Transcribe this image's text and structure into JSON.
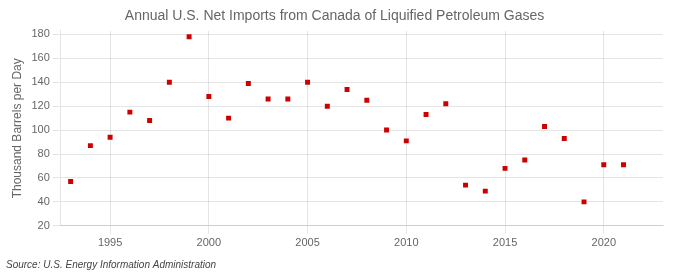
{
  "chart_data": {
    "type": "scatter",
    "title": "Annual U.S. Net Imports from Canada of Liquified Petroleum Gases",
    "ylabel": "Thousand Barrels per Day",
    "source": "Source: U.S. Energy Information Administration",
    "x": [
      1993,
      1994,
      1995,
      1996,
      1997,
      1998,
      1999,
      2000,
      2001,
      2002,
      2003,
      2004,
      2005,
      2006,
      2007,
      2008,
      2009,
      2010,
      2011,
      2012,
      2013,
      2014,
      2015,
      2016,
      2017,
      2018,
      2019,
      2020,
      2021
    ],
    "values": [
      57,
      87,
      94,
      115,
      108,
      140,
      178,
      128,
      110,
      139,
      126,
      126,
      140,
      120,
      134,
      125,
      100,
      91,
      113,
      122,
      54,
      49,
      68,
      75,
      103,
      93,
      40,
      71,
      71
    ],
    "color": "#cc0000",
    "marker": "square",
    "xlim": [
      1992.5,
      2023
    ],
    "xticks": [
      1995,
      2000,
      2005,
      2010,
      2015,
      2020
    ],
    "ylim": [
      20,
      183
    ],
    "yticks": [
      20,
      40,
      60,
      80,
      100,
      120,
      140,
      160,
      180
    ],
    "grid": true
  }
}
